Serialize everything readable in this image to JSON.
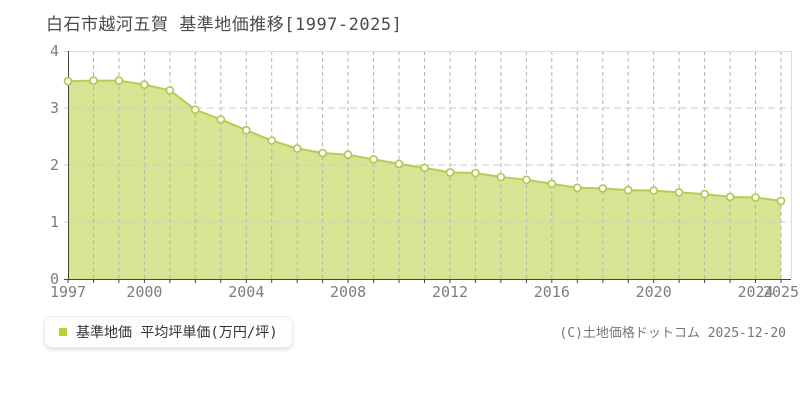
{
  "title": "白石市越河五賀 基準地価推移[1997-2025]",
  "legend": {
    "label": "基準地価 平均坪単価(万円/坪)",
    "marker_color": "#b5d334"
  },
  "copyright": "(C)土地価格ドットコム 2025-12-20",
  "chart_data": {
    "type": "area",
    "title": "白石市越河五賀 基準地価推移[1997-2025]",
    "series_name": "基準地価 平均坪単価(万円/坪)",
    "x": [
      1997,
      1998,
      1999,
      2000,
      2001,
      2002,
      2003,
      2004,
      2005,
      2006,
      2007,
      2008,
      2009,
      2010,
      2011,
      2012,
      2013,
      2014,
      2015,
      2016,
      2017,
      2018,
      2019,
      2020,
      2021,
      2022,
      2023,
      2024,
      2025
    ],
    "values": [
      3.47,
      3.48,
      3.48,
      3.41,
      3.31,
      2.97,
      2.8,
      2.61,
      2.43,
      2.29,
      2.21,
      2.18,
      2.1,
      2.02,
      1.95,
      1.87,
      1.86,
      1.79,
      1.74,
      1.67,
      1.6,
      1.59,
      1.56,
      1.55,
      1.52,
      1.49,
      1.44,
      1.43,
      1.37
    ],
    "ylim": [
      0,
      4
    ],
    "y_ticks": [
      0,
      1,
      2,
      3,
      4
    ],
    "x_tick_labels": [
      "1997",
      "2000",
      "2004",
      "2008",
      "2012",
      "2016",
      "2020",
      "2024",
      "2025"
    ],
    "grid": true,
    "legend_position": "bottom-left",
    "colors": {
      "area_fill": "#d6e494",
      "line": "#b0d050",
      "marker_fill": "#ffffff",
      "marker_stroke": "#a9cc49",
      "legend_marker": "#b5d334",
      "grid_vertical": "#b4b4b4",
      "grid_horizontal": "#cdcdcd",
      "frame": "#dddddd",
      "axis": "#444444",
      "tick_text": "#7d7d7d"
    }
  }
}
